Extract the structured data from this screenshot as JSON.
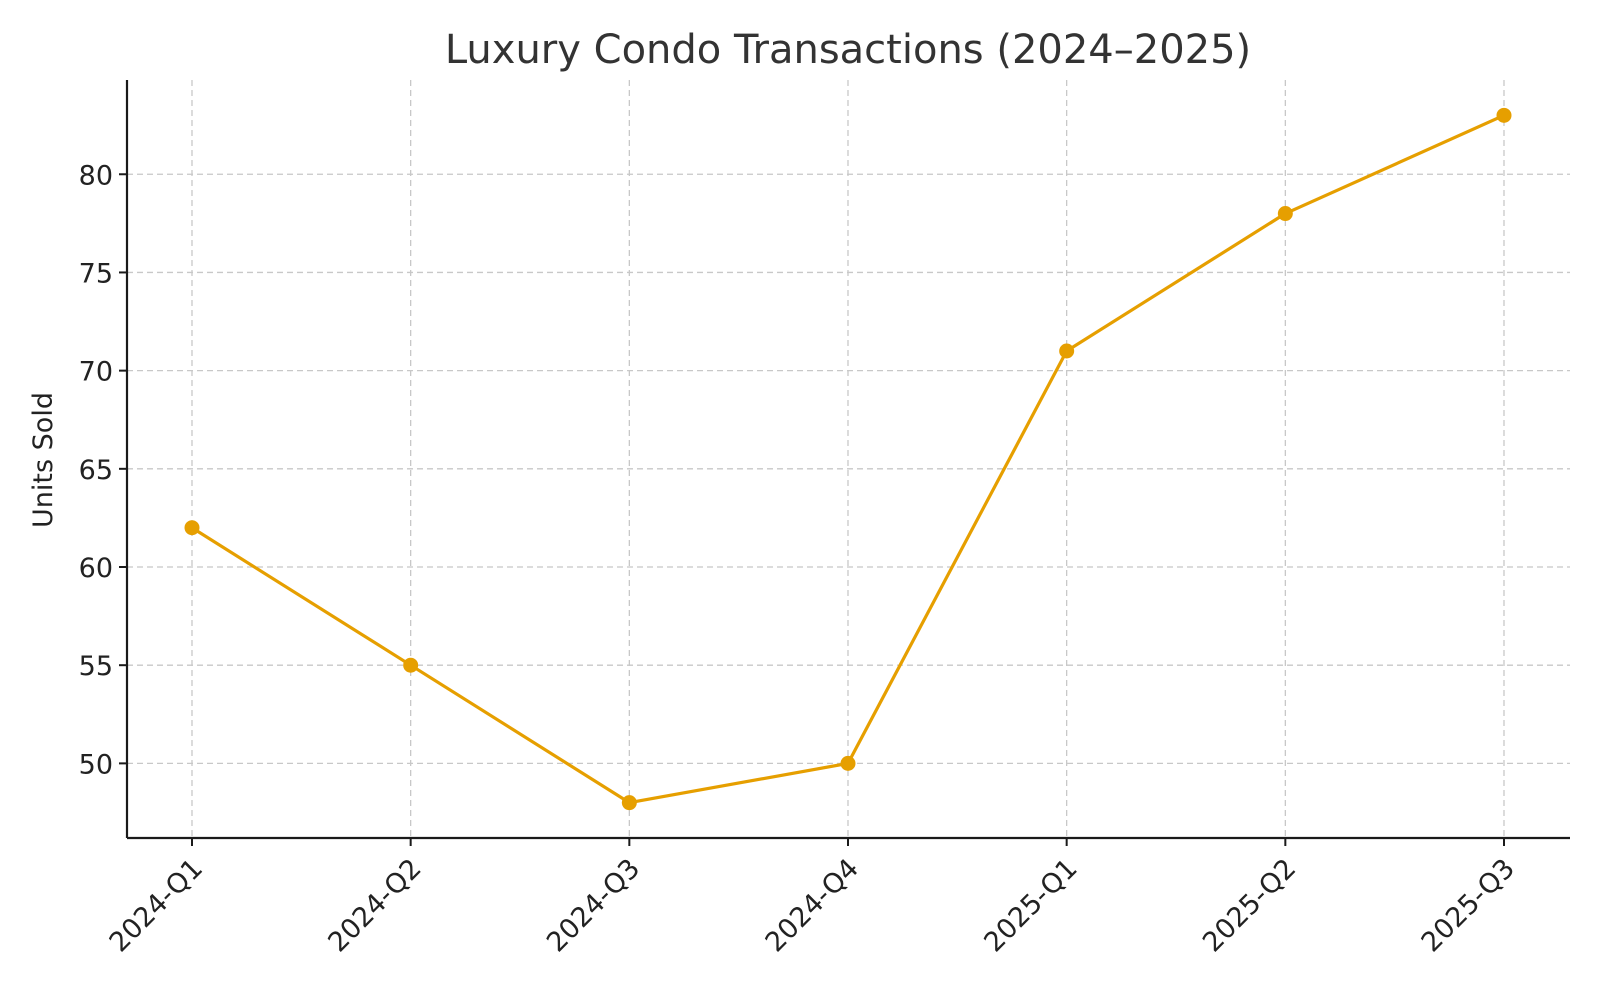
{
  "chart_data": {
    "type": "line",
    "title": "Luxury Condo Transactions (2024–2025)",
    "xlabel": "",
    "ylabel": "Units Sold",
    "categories": [
      "2024-Q1",
      "2024-Q2",
      "2024-Q3",
      "2024-Q4",
      "2025-Q1",
      "2025-Q2",
      "2025-Q3"
    ],
    "series": [
      {
        "values": [
          62,
          55,
          48,
          50,
          71,
          78,
          83
        ],
        "color": "#E69F00",
        "marker": "circle"
      }
    ],
    "ylim": [
      46.2,
      84.8
    ],
    "yticks": [
      50,
      55,
      60,
      65,
      70,
      75,
      80
    ],
    "grid": true,
    "x_tick_rotation": "45-degrees"
  }
}
